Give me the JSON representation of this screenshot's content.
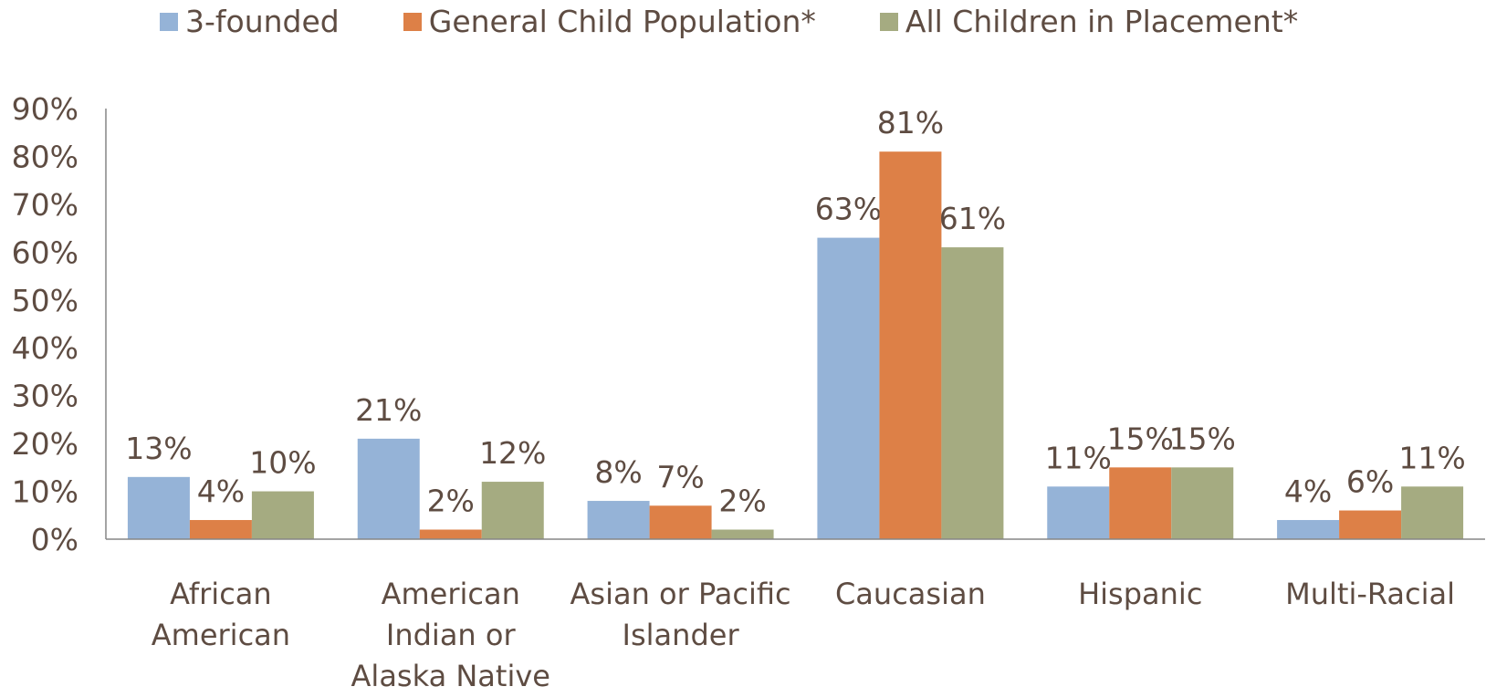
{
  "chart_data": {
    "type": "bar",
    "categories": [
      "African American",
      "American Indian or Alaska Native",
      "Asian or Pacific Islander",
      "Caucasian",
      "Hispanic",
      "Multi-Racial"
    ],
    "series": [
      {
        "name": "3-founded",
        "color": "#95b3d7",
        "values": [
          13,
          21,
          8,
          63,
          11,
          4
        ],
        "value_labels": [
          "13%",
          "21%",
          "8%",
          "63%",
          "11%",
          "4%"
        ]
      },
      {
        "name": "General Child Population*",
        "color": "#dd8047",
        "values": [
          4,
          2,
          7,
          81,
          15,
          6
        ],
        "value_labels": [
          "4%",
          "2%",
          "7%",
          "81%",
          "15%",
          "6%"
        ]
      },
      {
        "name": "All Children in Placement*",
        "color": "#a5ab81",
        "values": [
          10,
          12,
          2,
          61,
          15,
          11
        ],
        "value_labels": [
          "10%",
          "12%",
          "2%",
          "61%",
          "15%",
          "11%"
        ]
      }
    ],
    "ylim": [
      0,
      90
    ],
    "yticks": [
      {
        "value": 0,
        "label": "0%"
      },
      {
        "value": 10,
        "label": "10%"
      },
      {
        "value": 20,
        "label": "20%"
      },
      {
        "value": 30,
        "label": "30%"
      },
      {
        "value": 40,
        "label": "40%"
      },
      {
        "value": 50,
        "label": "50%"
      },
      {
        "value": 60,
        "label": "60%"
      },
      {
        "value": 70,
        "label": "70%"
      },
      {
        "value": 80,
        "label": "80%"
      },
      {
        "value": 90,
        "label": "90%"
      }
    ],
    "legend": "top"
  }
}
